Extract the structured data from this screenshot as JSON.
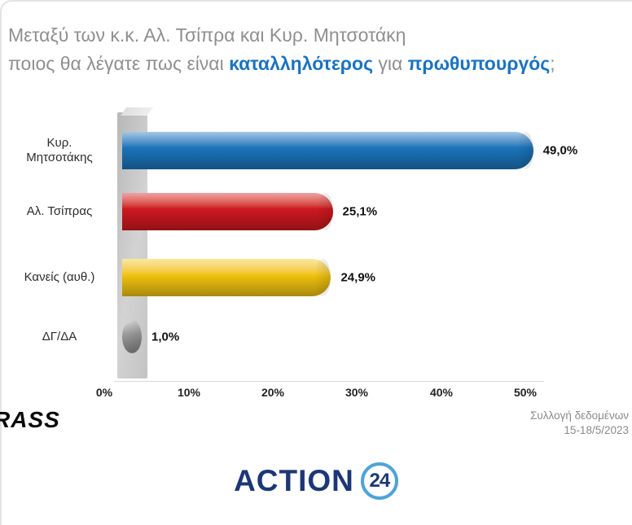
{
  "title": {
    "line1": "Μεταξύ των κ.κ. Αλ. Τσίπρα και Κυρ. Μητσοτάκη",
    "line2_pre": "ποιος θα λέγατε πως είναι ",
    "line2_hl1": "καταλληλότερος",
    "line2_mid": " για ",
    "line2_hl2": "πρωθυπουργός",
    "line2_end": ";"
  },
  "chart_data": {
    "type": "bar",
    "orientation": "horizontal",
    "categories": [
      "Κυρ.\nΜητσοτάκης",
      "Αλ. Τσίπρας",
      "Κανείς (αυθ.)",
      "ΔΓ/ΔΑ"
    ],
    "values": [
      49.0,
      25.1,
      24.9,
      1.0
    ],
    "value_labels": [
      "49,0%",
      "25,1%",
      "24,9%",
      "1,0%"
    ],
    "colors": [
      "#1b75bb",
      "#cf1920",
      "#f2c410",
      "#9a9a9a"
    ],
    "xlim": [
      0,
      50
    ],
    "x_ticks": [
      "0%",
      "10%",
      "20%",
      "30%",
      "40%",
      "50%"
    ],
    "grid": false,
    "legend": false
  },
  "footer": {
    "source_logo": "RASS",
    "note_line1": "Συλλογή δεδομένων",
    "note_line2": "15-18/5/2023",
    "brand_name": "ACTION",
    "brand_number": "24"
  }
}
